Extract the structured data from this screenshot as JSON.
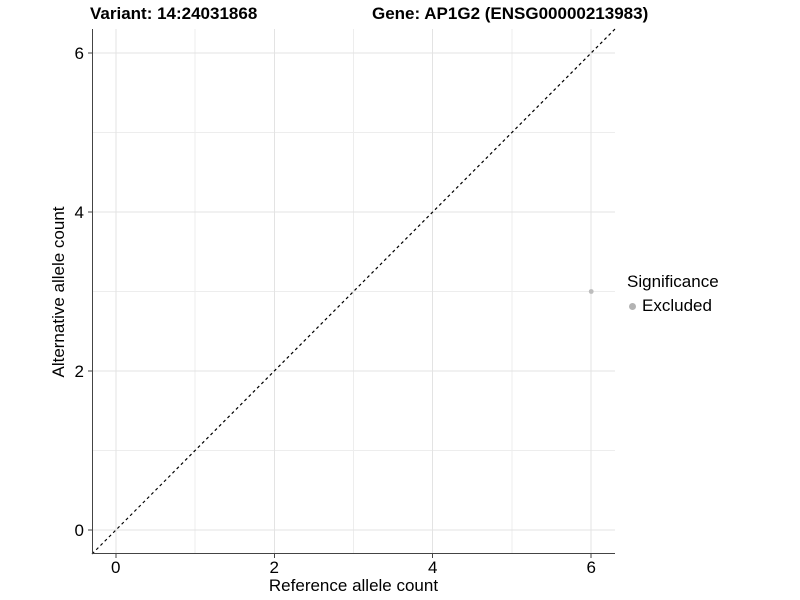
{
  "chart_data": {
    "type": "scatter",
    "title_parts": [
      "Variant: 14:24031868",
      "Gene: AP1G2 (ENSG00000213983)"
    ],
    "xlabel": "Reference allele count",
    "ylabel": "Alternative allele count",
    "xlim": [
      -0.3,
      6.3
    ],
    "ylim": [
      -0.3,
      6.3
    ],
    "x_ticks": [
      0,
      2,
      4,
      6
    ],
    "y_ticks": [
      0,
      2,
      4,
      6
    ],
    "x_minor_ticks": [
      1,
      3,
      5
    ],
    "y_minor_ticks": [
      1,
      3,
      5
    ],
    "grid": "on",
    "identity_line": {
      "style": "dashed",
      "from": [
        -0.3,
        -0.3
      ],
      "to": [
        6.3,
        6.3
      ],
      "color": "#000000"
    },
    "series": [
      {
        "name": "Excluded",
        "color": "#bdbdbd",
        "points": [
          {
            "x": 6,
            "y": 3
          }
        ]
      }
    ],
    "legend": {
      "title": "Significance",
      "position": "right",
      "items": [
        {
          "label": "Excluded",
          "color": "#b3b3b3"
        }
      ]
    }
  },
  "colors": {
    "grid_major": "#e3e3e3",
    "grid_minor": "#ededed",
    "axis_line": "#444444",
    "tick_mark": "#444444",
    "text": "#000000",
    "background": "#ffffff"
  }
}
